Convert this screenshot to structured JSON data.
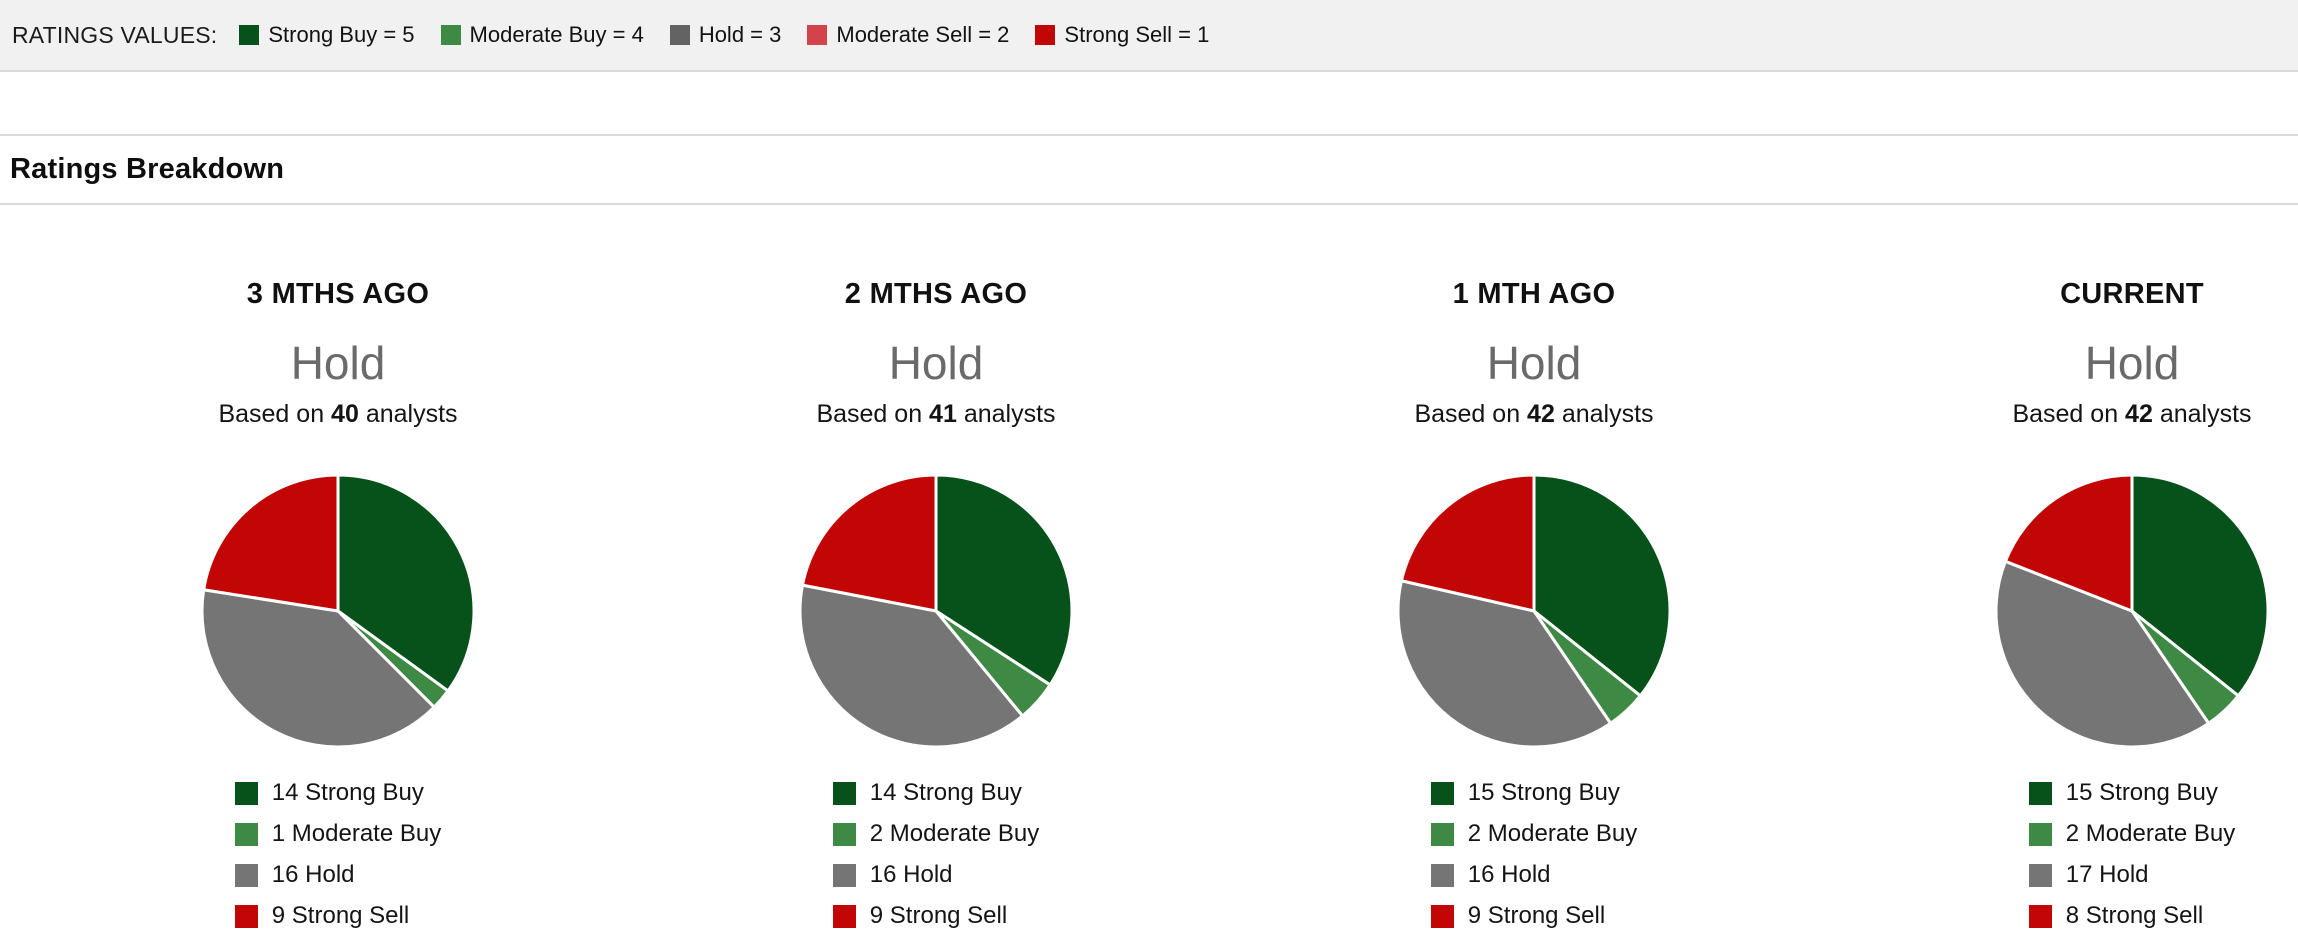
{
  "ratings_values_bar": {
    "label": "RATINGS VALUES:",
    "items": [
      {
        "label": "Strong Buy = 5",
        "color": "#07521b"
      },
      {
        "label": "Moderate Buy = 4",
        "color": "#3e8943"
      },
      {
        "label": "Hold = 3",
        "color": "#636363"
      },
      {
        "label": "Moderate Sell = 2",
        "color": "#d2434b"
      },
      {
        "label": "Strong Sell = 1",
        "color": "#c20606"
      }
    ]
  },
  "section": {
    "title": "Ratings Breakdown"
  },
  "chart_data": [
    {
      "type": "pie",
      "period": "3 MTHS AGO",
      "consensus": "Hold",
      "based_on": {
        "prefix": "Based on",
        "count": 40,
        "suffix": "analysts"
      },
      "slices": [
        {
          "label": "Strong Buy",
          "count": 14,
          "color": "#07521b"
        },
        {
          "label": "Moderate Buy",
          "count": 1,
          "color": "#3e8943"
        },
        {
          "label": "Hold",
          "count": 16,
          "color": "#757575"
        },
        {
          "label": "Strong Sell",
          "count": 9,
          "color": "#c20606"
        }
      ]
    },
    {
      "type": "pie",
      "period": "2 MTHS AGO",
      "consensus": "Hold",
      "based_on": {
        "prefix": "Based on",
        "count": 41,
        "suffix": "analysts"
      },
      "slices": [
        {
          "label": "Strong Buy",
          "count": 14,
          "color": "#07521b"
        },
        {
          "label": "Moderate Buy",
          "count": 2,
          "color": "#3e8943"
        },
        {
          "label": "Hold",
          "count": 16,
          "color": "#757575"
        },
        {
          "label": "Strong Sell",
          "count": 9,
          "color": "#c20606"
        }
      ]
    },
    {
      "type": "pie",
      "period": "1 MTH AGO",
      "consensus": "Hold",
      "based_on": {
        "prefix": "Based on",
        "count": 42,
        "suffix": "analysts"
      },
      "slices": [
        {
          "label": "Strong Buy",
          "count": 15,
          "color": "#07521b"
        },
        {
          "label": "Moderate Buy",
          "count": 2,
          "color": "#3e8943"
        },
        {
          "label": "Hold",
          "count": 16,
          "color": "#757575"
        },
        {
          "label": "Strong Sell",
          "count": 9,
          "color": "#c20606"
        }
      ]
    },
    {
      "type": "pie",
      "period": "CURRENT",
      "consensus": "Hold",
      "based_on": {
        "prefix": "Based on",
        "count": 42,
        "suffix": "analysts"
      },
      "slices": [
        {
          "label": "Strong Buy",
          "count": 15,
          "color": "#07521b"
        },
        {
          "label": "Moderate Buy",
          "count": 2,
          "color": "#3e8943"
        },
        {
          "label": "Hold",
          "count": 17,
          "color": "#757575"
        },
        {
          "label": "Strong Sell",
          "count": 8,
          "color": "#c20606"
        }
      ]
    }
  ]
}
